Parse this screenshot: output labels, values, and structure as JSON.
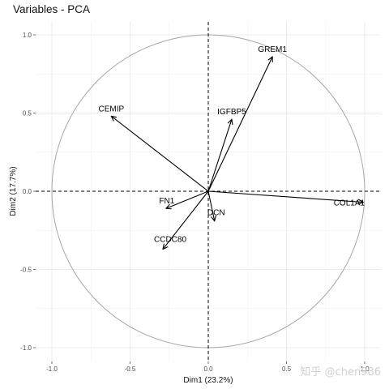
{
  "chart_data": {
    "type": "scatter",
    "subtype": "pca-variable-correlation-circle",
    "title": "Variables - PCA",
    "xlabel": "Dim1 (23.2%)",
    "ylabel": "Dim2 (17.7%)",
    "xlim": [
      -1.0,
      1.0
    ],
    "ylim": [
      -1.0,
      1.0
    ],
    "xticks": [
      -1.0,
      -0.5,
      0.0,
      0.5,
      1.0
    ],
    "xtick_labels": [
      "-1.0",
      "-0.5",
      "0.0",
      "0.5",
      "1.0"
    ],
    "yticks": [
      -1.0,
      -0.5,
      0.0,
      0.5,
      1.0
    ],
    "ytick_labels": [
      "-1.0",
      "-0.5",
      "0.0",
      "0.5",
      "1.0"
    ],
    "grid": true,
    "unit_circle": true,
    "variables": [
      {
        "name": "GREM1",
        "x": 0.41,
        "y": 0.86
      },
      {
        "name": "IGFBP5",
        "x": 0.15,
        "y": 0.46
      },
      {
        "name": "CEMIP",
        "x": -0.62,
        "y": 0.48
      },
      {
        "name": "COL1A1",
        "x": 0.99,
        "y": -0.07
      },
      {
        "name": "FN1",
        "x": -0.27,
        "y": -0.11
      },
      {
        "name": "DCN",
        "x": 0.04,
        "y": -0.19
      },
      {
        "name": "CCDC80",
        "x": -0.29,
        "y": -0.37
      }
    ]
  },
  "watermark": "知乎 @chen986"
}
